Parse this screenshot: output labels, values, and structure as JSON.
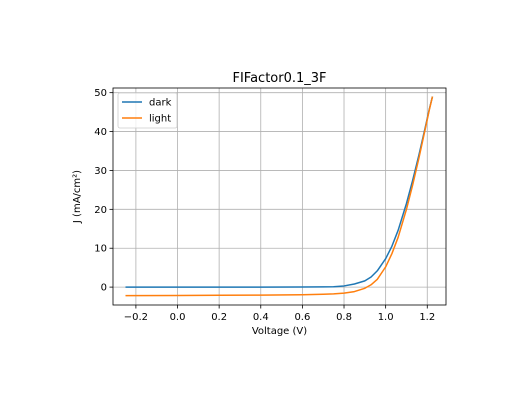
{
  "chart_data": {
    "type": "line",
    "title": "FIFactor0.1_3F",
    "xlabel": "Voltage (V)",
    "ylabel": "J (mA/cm²)",
    "xlim": [
      -0.31,
      1.29
    ],
    "ylim": [
      -4.6,
      51.2
    ],
    "xticks": [
      -0.2,
      0.0,
      0.2,
      0.4,
      0.6,
      0.8,
      1.0,
      1.2
    ],
    "xtick_labels": [
      "−0.2",
      "0.0",
      "0.2",
      "0.4",
      "0.6",
      "0.8",
      "1.0",
      "1.2"
    ],
    "yticks": [
      0,
      10,
      20,
      30,
      40,
      50
    ],
    "ytick_labels": [
      "0",
      "10",
      "20",
      "30",
      "40",
      "50"
    ],
    "grid": true,
    "legend_position": "top-left",
    "series": [
      {
        "name": "dark",
        "color": "#1f77b4",
        "x": [
          -0.25,
          0.0,
          0.2,
          0.4,
          0.6,
          0.7,
          0.75,
          0.8,
          0.85,
          0.9,
          0.93,
          0.96,
          1.0,
          1.03,
          1.06,
          1.1,
          1.13,
          1.16,
          1.19,
          1.21,
          1.225
        ],
        "y": [
          0.0,
          0.0,
          0.0,
          0.0,
          0.02,
          0.05,
          0.1,
          0.3,
          0.8,
          1.6,
          2.6,
          4.2,
          7.3,
          10.5,
          14.6,
          21.5,
          27.5,
          34.0,
          41.0,
          45.8,
          49.0
        ]
      },
      {
        "name": "light",
        "color": "#ff7f0e",
        "x": [
          -0.25,
          0.0,
          0.2,
          0.4,
          0.6,
          0.7,
          0.75,
          0.8,
          0.85,
          0.9,
          0.93,
          0.96,
          1.0,
          1.03,
          1.06,
          1.1,
          1.13,
          1.16,
          1.19,
          1.21,
          1.225
        ],
        "y": [
          -2.2,
          -2.15,
          -2.1,
          -2.05,
          -1.95,
          -1.85,
          -1.75,
          -1.55,
          -1.15,
          -0.3,
          0.6,
          2.0,
          5.2,
          8.6,
          12.8,
          20.0,
          26.3,
          33.2,
          40.6,
          45.6,
          49.0
        ]
      }
    ]
  }
}
